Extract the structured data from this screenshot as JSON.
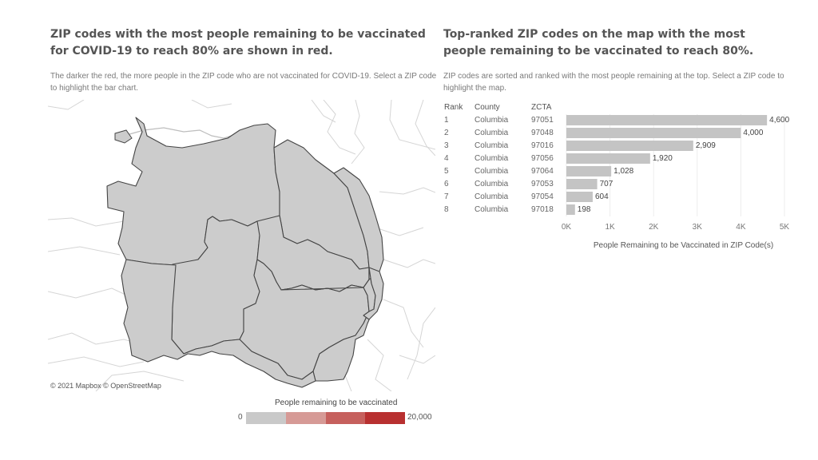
{
  "left": {
    "title": "ZIP codes with the most people remaining to be vaccinated for COVID-19 to reach 80% are shown in red.",
    "subtitle": "The darker the red, the more people in the ZIP code who are not vaccinated for COVID-19.  Select a ZIP code to highlight the bar chart.",
    "attribution": "© 2021 Mapbox  © OpenStreetMap",
    "legend": {
      "title": "People remaining to be vaccinated",
      "min": "0",
      "max": "20,000",
      "colors": [
        "#c9c9c9",
        "#d69a96",
        "#c6605d",
        "#b83030"
      ]
    }
  },
  "right": {
    "title": "Top-ranked ZIP codes on the map with the most people remaining to be vaccinated to reach 80%.",
    "subtitle": "ZIP codes are sorted and ranked with the most people remaining at the top. Select a ZIP code to highlight the map."
  },
  "colors": {
    "bar": "#c4c4c4",
    "map_fill": "#cccccc",
    "map_stroke": "#444444",
    "road": "#d5d5d5"
  },
  "chart_data": {
    "type": "bar",
    "orientation": "horizontal",
    "columns": [
      "Rank",
      "County",
      "ZCTA"
    ],
    "rows": [
      {
        "rank": "1",
        "county": "Columbia",
        "zcta": "97051",
        "value": 4600,
        "label": "4,600"
      },
      {
        "rank": "2",
        "county": "Columbia",
        "zcta": "97048",
        "value": 4000,
        "label": "4,000"
      },
      {
        "rank": "3",
        "county": "Columbia",
        "zcta": "97016",
        "value": 2909,
        "label": "2,909"
      },
      {
        "rank": "4",
        "county": "Columbia",
        "zcta": "97056",
        "value": 1920,
        "label": "1,920"
      },
      {
        "rank": "5",
        "county": "Columbia",
        "zcta": "97064",
        "value": 1028,
        "label": "1,028"
      },
      {
        "rank": "6",
        "county": "Columbia",
        "zcta": "97053",
        "value": 707,
        "label": "707"
      },
      {
        "rank": "7",
        "county": "Columbia",
        "zcta": "97054",
        "value": 604,
        "label": "604"
      },
      {
        "rank": "8",
        "county": "Columbia",
        "zcta": "97018",
        "value": 198,
        "label": "198"
      }
    ],
    "xlabel": "People Remaining to be Vaccinated in ZIP Code(s)",
    "xlim": [
      0,
      5000
    ],
    "ticks": [
      {
        "value": 0,
        "label": "0K"
      },
      {
        "value": 1000,
        "label": "1K"
      },
      {
        "value": 2000,
        "label": "2K"
      },
      {
        "value": 3000,
        "label": "3K"
      },
      {
        "value": 4000,
        "label": "4K"
      },
      {
        "value": 5000,
        "label": "5K"
      }
    ],
    "grid": true
  }
}
